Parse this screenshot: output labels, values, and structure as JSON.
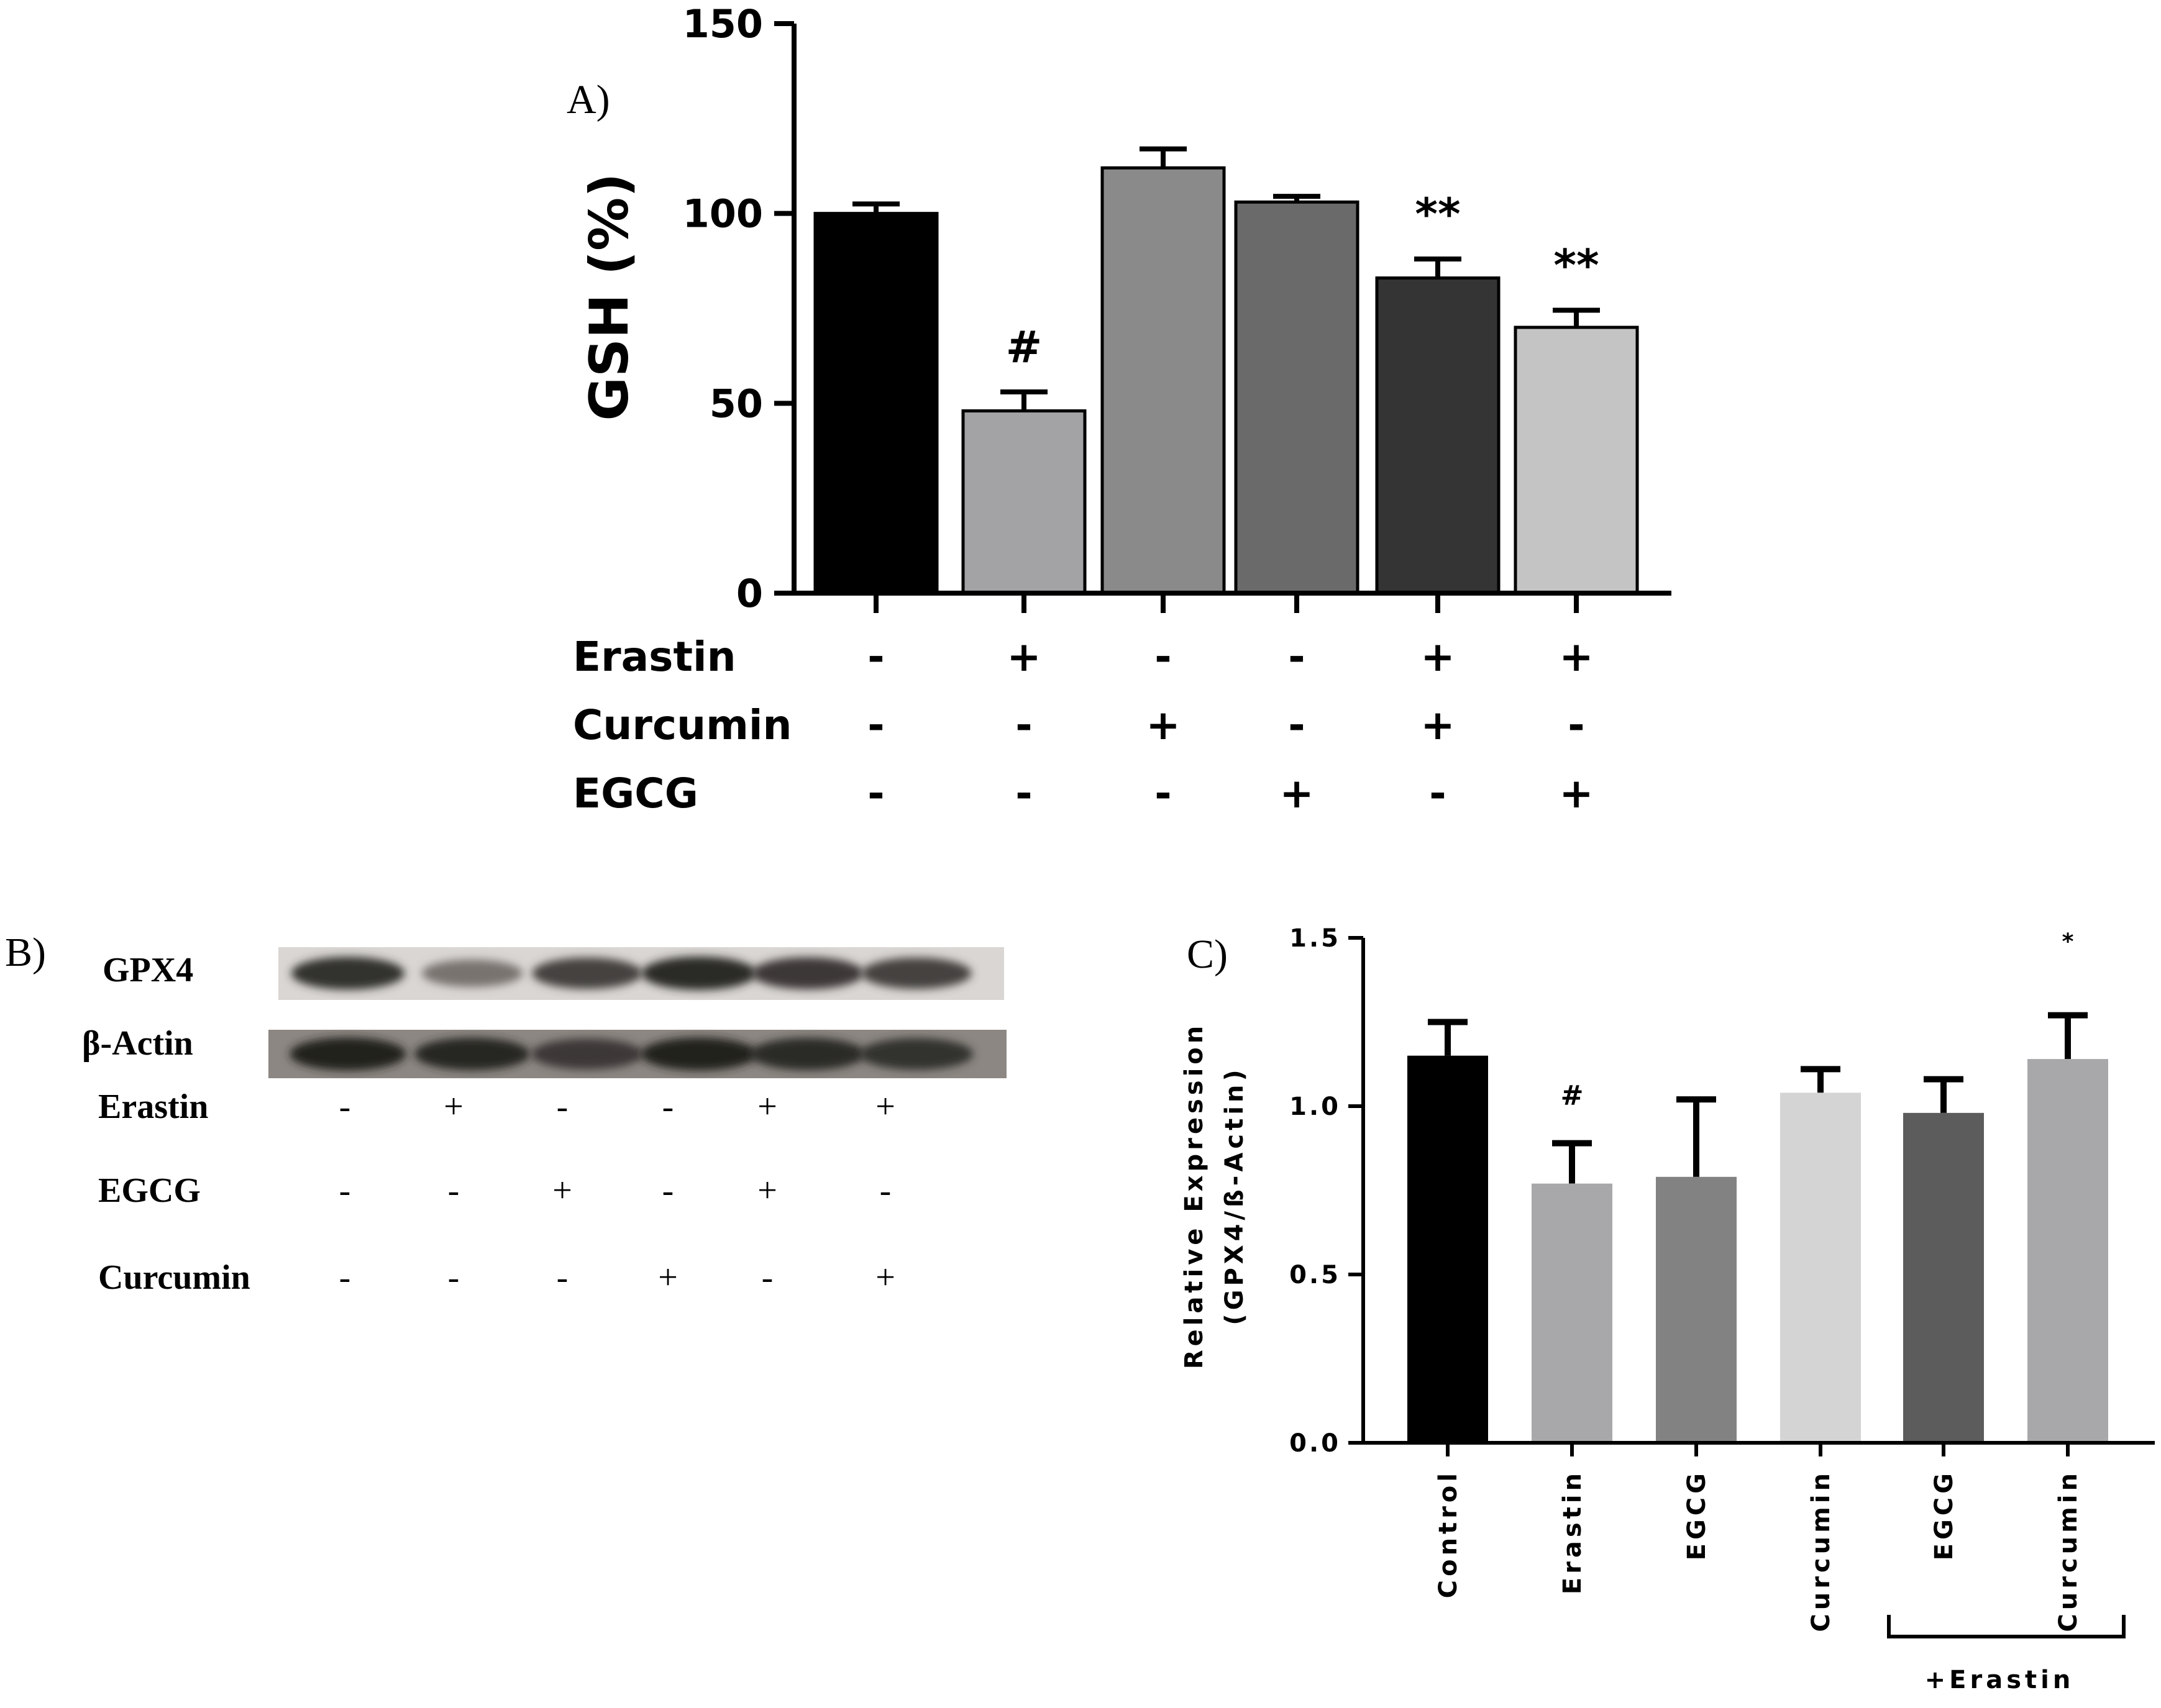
{
  "chart_data": [
    {
      "panel_label": "A)",
      "type": "bar",
      "ylabel": "GSH (%)",
      "ylim": [
        0,
        150
      ],
      "yticks": [
        "0",
        "50",
        "100",
        "150"
      ],
      "values": [
        100,
        48,
        112,
        103,
        83,
        70
      ],
      "errors": [
        2.5,
        5,
        5,
        1.5,
        5,
        4.5
      ],
      "bar_colors": [
        "#000000",
        "#a3a3a5",
        "#8a8a8a",
        "#6a6a6a",
        "#343434",
        "#c4c4c4"
      ],
      "annotations": [
        "",
        "#",
        "",
        "",
        "**",
        "**"
      ],
      "treatment_rows": [
        {
          "name": "Erastin",
          "signs": [
            "-",
            "+",
            "-",
            "-",
            "+",
            "+"
          ]
        },
        {
          "name": "Curcumin",
          "signs": [
            "-",
            "-",
            "+",
            "-",
            "+",
            "-"
          ]
        },
        {
          "name": "EGCG",
          "signs": [
            "-",
            "-",
            "-",
            "+",
            "-",
            "+"
          ]
        }
      ]
    },
    {
      "panel_label": "C)",
      "type": "bar",
      "ylabel_line1": "Relative Expression",
      "ylabel_line2": "(GPX4/ß-Actin)",
      "ylim": [
        0,
        1.5
      ],
      "yticks": [
        "0.0",
        "0.5",
        "1.0",
        "1.5"
      ],
      "categories": [
        "Control",
        "Erastin",
        "EGCG",
        "Curcumin",
        "EGCG",
        "Curcumin"
      ],
      "values": [
        1.15,
        0.77,
        0.79,
        1.04,
        0.98,
        1.14
      ],
      "errors": [
        0.1,
        0.12,
        0.23,
        0.07,
        0.1,
        0.13
      ],
      "bar_colors": [
        "#000000",
        "#a8a8aa",
        "#828282",
        "#d4d4d4",
        "#5c5c5c",
        "#a8a8aa"
      ],
      "annotations": [
        "",
        "#",
        "",
        "",
        "",
        "*"
      ],
      "group_label": "+Erastin"
    }
  ],
  "blot": {
    "panel_label": "B)",
    "rows": [
      {
        "name": "GPX4",
        "intensity": [
          0.85,
          0.45,
          0.75,
          0.9,
          0.8,
          0.75
        ]
      },
      {
        "name": "β-Actin",
        "intensity": [
          0.95,
          0.92,
          0.8,
          0.95,
          0.9,
          0.85
        ]
      }
    ],
    "treatment_rows": [
      {
        "name": "Erastin",
        "signs": [
          "-",
          "+",
          "-",
          "-",
          "+",
          "+"
        ]
      },
      {
        "name": "EGCG",
        "signs": [
          "-",
          "-",
          "+",
          "-",
          "+",
          "-"
        ]
      },
      {
        "name": "Curcumin",
        "signs": [
          "-",
          "-",
          "-",
          "+",
          "-",
          "+"
        ]
      }
    ]
  }
}
